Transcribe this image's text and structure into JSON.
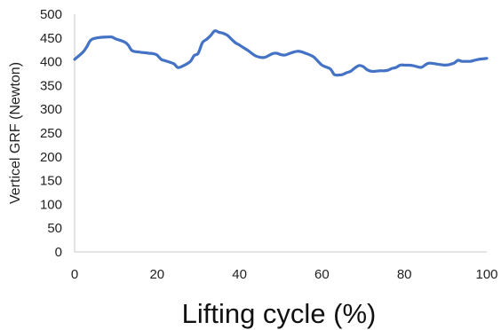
{
  "chart_data": {
    "type": "line",
    "title": "",
    "xlabel": "Lifting cycle (%)",
    "ylabel": "Verticel GRF (Newton)",
    "xlim": [
      0,
      100
    ],
    "ylim": [
      0,
      500
    ],
    "xticks": [
      0,
      20,
      40,
      60,
      80,
      100
    ],
    "yticks": [
      0,
      50,
      100,
      150,
      200,
      250,
      300,
      350,
      400,
      450,
      500
    ],
    "grid": false,
    "legend": "none",
    "series": [
      {
        "color": "#4472c4",
        "x": [
          0,
          2,
          3,
          4,
          6,
          8,
          9,
          10,
          12,
          13,
          14,
          16,
          18,
          19,
          20,
          21,
          22,
          24,
          25,
          26,
          28,
          29,
          30,
          31,
          32,
          33,
          34,
          35,
          36,
          37,
          38,
          39,
          40,
          42,
          44,
          46,
          48,
          49,
          50,
          51,
          52,
          53,
          54,
          55,
          56,
          58,
          60,
          62,
          63,
          64,
          65,
          66,
          67,
          68,
          69,
          70,
          71,
          72,
          73,
          74,
          75,
          76,
          77,
          78,
          79,
          80,
          82,
          84,
          85,
          86,
          88,
          90,
          92,
          93,
          94,
          96,
          97,
          98,
          100
        ],
        "y": [
          405,
          420,
          432,
          446,
          451,
          452,
          452,
          448,
          442,
          435,
          423,
          420,
          418,
          417,
          414,
          405,
          402,
          396,
          388,
          390,
          400,
          413,
          418,
          440,
          447,
          455,
          465,
          462,
          460,
          456,
          448,
          440,
          435,
          424,
          412,
          409,
          417,
          418,
          415,
          414,
          417,
          420,
          422,
          421,
          418,
          410,
          393,
          385,
          373,
          372,
          373,
          377,
          380,
          387,
          392,
          390,
          383,
          380,
          380,
          381,
          381,
          382,
          386,
          388,
          393,
          393,
          392,
          388,
          393,
          397,
          395,
          393,
          397,
          403,
          401,
          401,
          403,
          405,
          407
        ]
      }
    ]
  }
}
